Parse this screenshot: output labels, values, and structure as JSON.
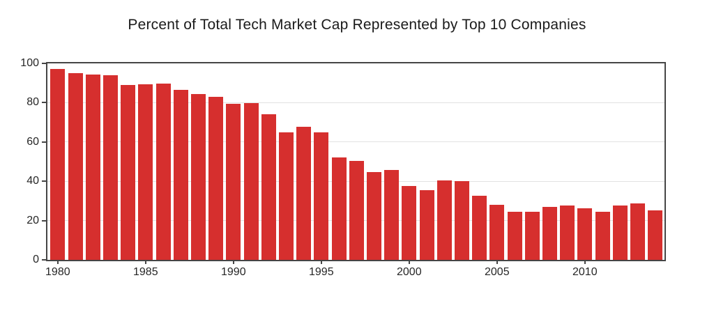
{
  "page": {
    "background": "#ffffff"
  },
  "chart_data": {
    "type": "bar",
    "title": "Percent of Total Tech Market Cap Represented by Top 10 Companies",
    "xlabel": "",
    "ylabel": "",
    "x": [
      1980,
      1981,
      1982,
      1983,
      1984,
      1985,
      1986,
      1987,
      1988,
      1989,
      1990,
      1991,
      1992,
      1993,
      1994,
      1995,
      1996,
      1997,
      1998,
      1999,
      2000,
      2001,
      2002,
      2003,
      2004,
      2005,
      2006,
      2007,
      2008,
      2009,
      2010,
      2011,
      2012,
      2013,
      2014
    ],
    "values": [
      97.3,
      95.2,
      94.5,
      94.0,
      89.0,
      89.2,
      89.7,
      86.6,
      84.5,
      83.1,
      79.4,
      79.7,
      74.0,
      65.0,
      67.8,
      64.8,
      52.0,
      50.5,
      44.7,
      45.8,
      37.6,
      35.4,
      40.4,
      40.1,
      32.8,
      28.0,
      24.3,
      24.3,
      27.1,
      27.8,
      26.4,
      24.5,
      27.8,
      28.8,
      25.2
    ],
    "ylim": [
      0,
      100
    ],
    "yticks": [
      0,
      20,
      40,
      60,
      80,
      100
    ],
    "xticks": [
      1980,
      1985,
      1990,
      1995,
      2000,
      2005,
      2010
    ],
    "grid": true,
    "legend": false,
    "bar_color": "#d62f2e",
    "axis_color": "#454545",
    "grid_color": "#e2e2e2",
    "text_color": "#262626",
    "title_color": "#1a1a1a"
  }
}
